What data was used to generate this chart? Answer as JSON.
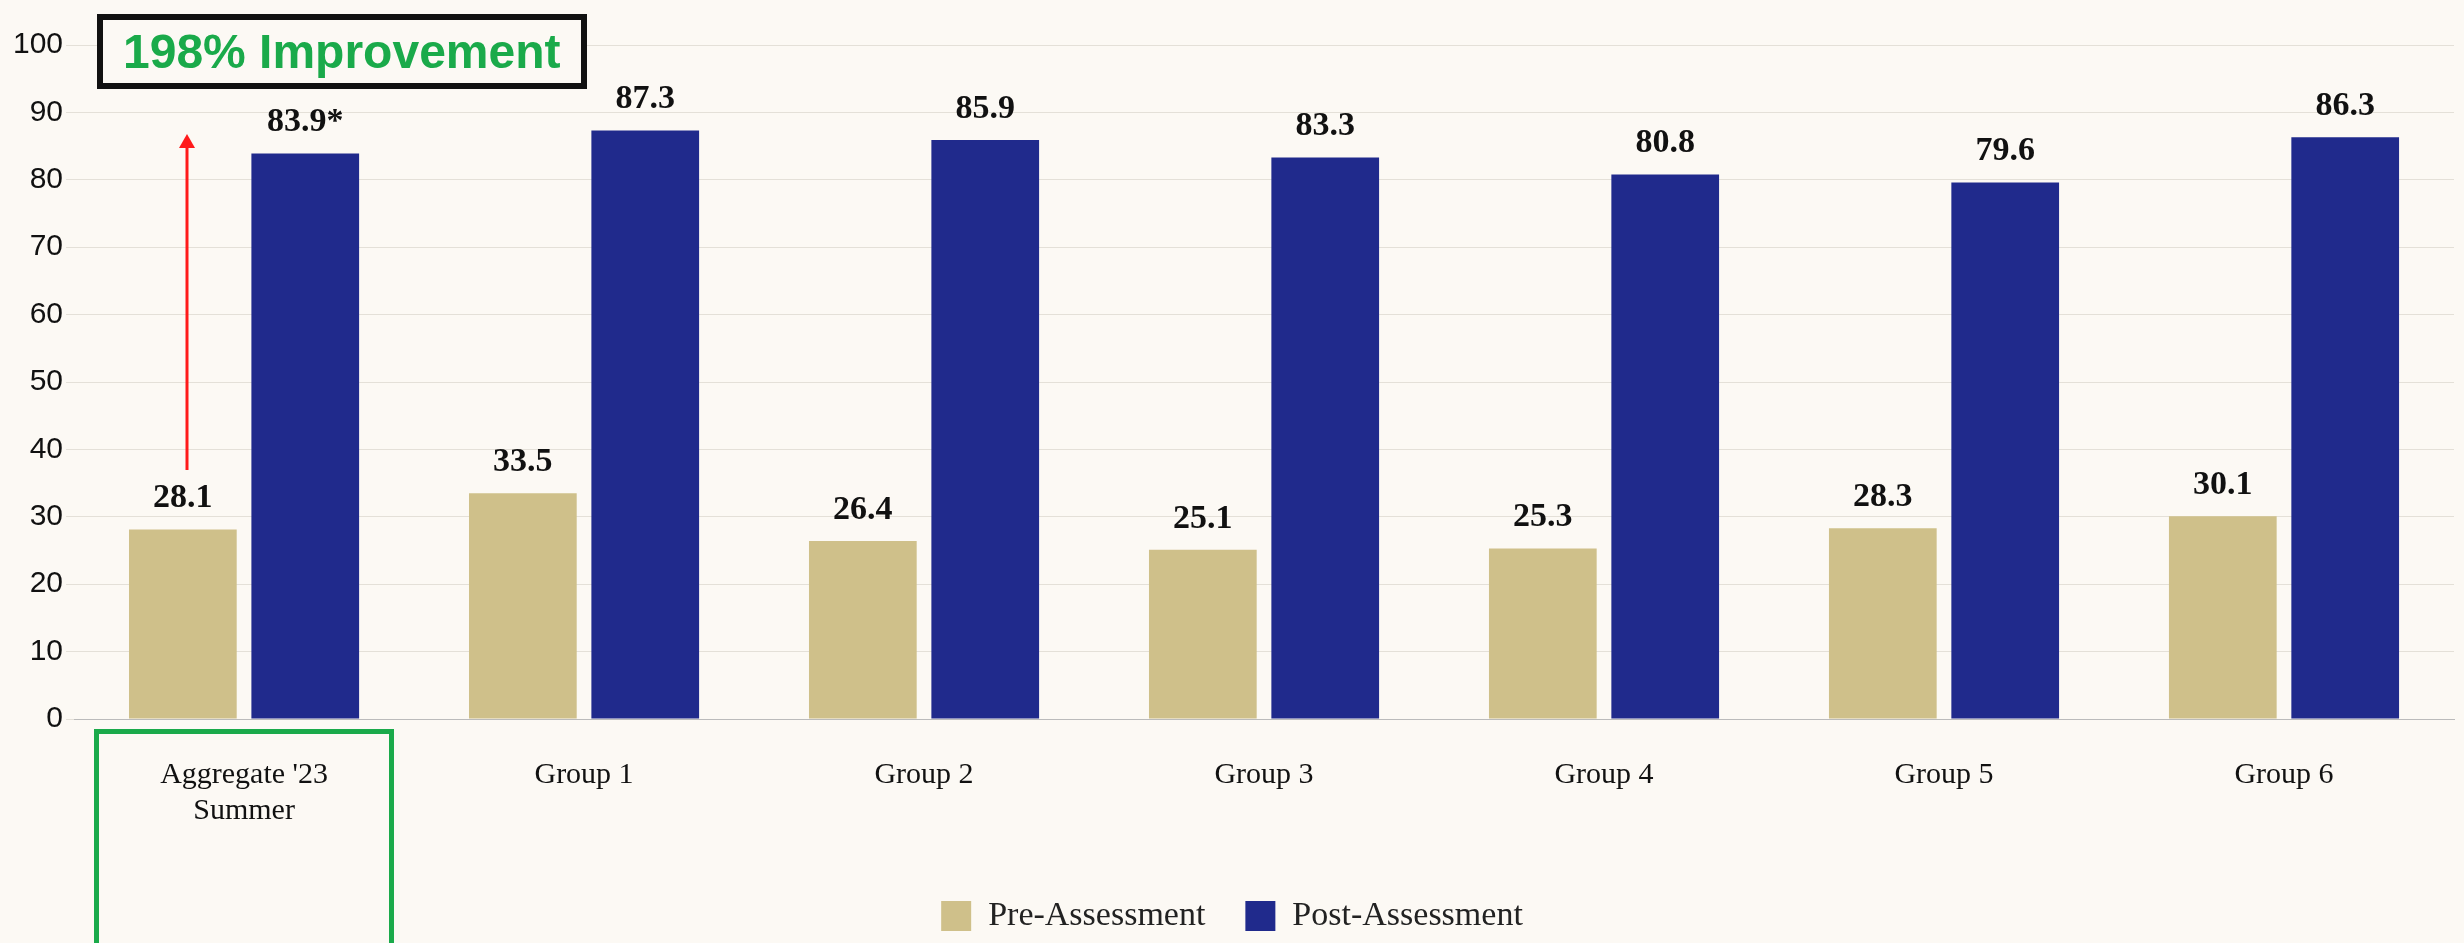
{
  "chart_data": {
    "type": "bar",
    "categories": [
      "Aggregate '23\nSummer",
      "Group 1",
      "Group 2",
      "Group 3",
      "Group 4",
      "Group 5",
      "Group 6"
    ],
    "series": [
      {
        "name": "Pre-Assessment",
        "color": "#cfc08a",
        "values": [
          28.1,
          33.5,
          26.4,
          25.1,
          25.3,
          28.3,
          30.1
        ],
        "value_labels": [
          "28.1",
          "33.5",
          "26.4",
          "25.1",
          "25.3",
          "28.3",
          "30.1"
        ]
      },
      {
        "name": "Post-Assessment",
        "color": "#202a8c",
        "values": [
          83.9,
          87.3,
          85.9,
          83.3,
          80.8,
          79.6,
          86.3
        ],
        "value_labels": [
          "83.9*",
          "87.3",
          "85.9",
          "83.3",
          "80.8",
          "79.6",
          "86.3"
        ]
      }
    ],
    "ylim": [
      0,
      100
    ],
    "yticks": [
      0,
      10,
      20,
      30,
      40,
      50,
      60,
      70,
      80,
      90,
      100
    ],
    "grid": "y",
    "legend": "bottom",
    "annotations": [
      "198% Improvement"
    ]
  }
}
